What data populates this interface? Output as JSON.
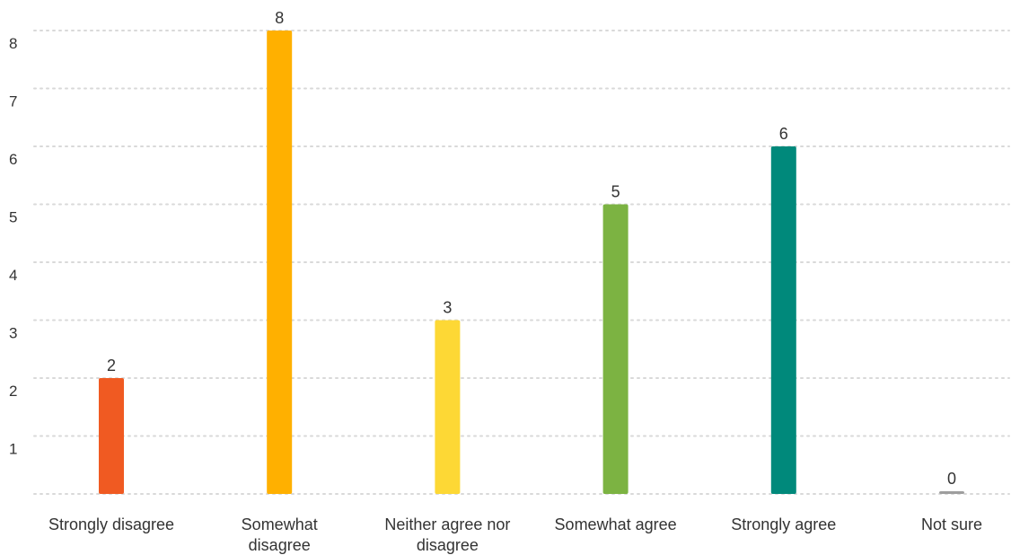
{
  "chart_data": {
    "type": "bar",
    "title": "",
    "xlabel": "",
    "ylabel": "",
    "categories": [
      [
        "Strongly disagree"
      ],
      [
        "Somewhat",
        "disagree"
      ],
      [
        "Neither agree nor",
        "disagree"
      ],
      [
        "Somewhat agree"
      ],
      [
        "Strongly agree"
      ],
      [
        "Not sure"
      ]
    ],
    "values": [
      2,
      8,
      3,
      5,
      6,
      0
    ],
    "colors": [
      "#f05a22",
      "#ffb000",
      "#fdd835",
      "#7cb342",
      "#00897b",
      "#9e9e9e"
    ],
    "ylim": [
      0,
      8
    ],
    "y_ticks": [
      1,
      2,
      3,
      4,
      5,
      6,
      7,
      8
    ],
    "y_tick_labels": [
      "1",
      "2",
      "3",
      "4",
      "5",
      "6",
      "7",
      "8"
    ],
    "data_labels": [
      "2",
      "8",
      "3",
      "5",
      "6",
      "0"
    ],
    "grid": true,
    "legend": "none"
  }
}
